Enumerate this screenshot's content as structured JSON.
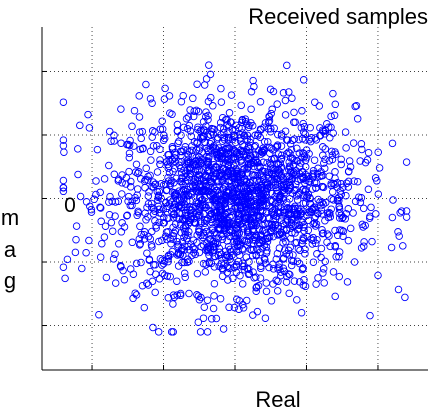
{
  "chart_data": {
    "type": "scatter",
    "title": "Received samples",
    "xlabel": "Real",
    "ylabel": "Imag",
    "ylabel_visible_letters": [
      "m",
      "a",
      "g"
    ],
    "y_tick_labels": [
      {
        "value": 0,
        "label": "0"
      }
    ],
    "xlim": [
      -1.35,
      1.35
    ],
    "ylim": [
      -1.35,
      1.35
    ],
    "x_gridlines": [
      -1.0,
      -0.5,
      0.0,
      0.5,
      1.0
    ],
    "y_gridlines": [
      -1.0,
      -0.5,
      0.0,
      0.5,
      1.0
    ],
    "grid": true,
    "legend": "none",
    "marker": "open-circle",
    "point_count_estimate": 2000,
    "distribution": {
      "shape": "roughly uniform/gaussian cloud centred at origin",
      "x_mean": 0.0,
      "y_mean": 0.0,
      "x_std": 0.42,
      "y_std": 0.36,
      "x_extent": [
        -1.2,
        1.2
      ],
      "y_extent": [
        -1.05,
        1.05
      ]
    },
    "colors": {
      "marker": "#0000ff",
      "grid": "#000000",
      "axes": "#000000"
    }
  }
}
